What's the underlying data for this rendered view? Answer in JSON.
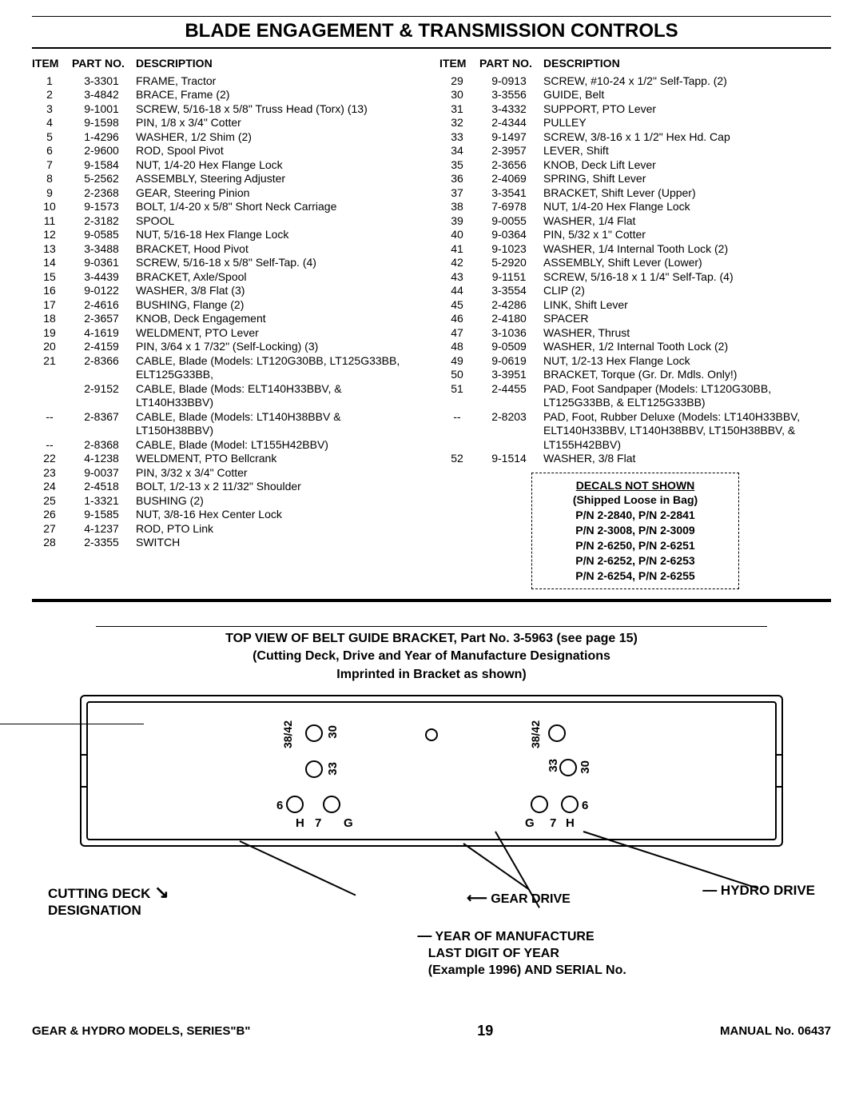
{
  "page": {
    "title": "BLADE ENGAGEMENT & TRANSMISSION CONTROLS",
    "headers": {
      "item": "ITEM",
      "part": "PART NO.",
      "desc": "DESCRIPTION"
    },
    "footer_left": "GEAR & HYDRO MODELS, SERIES\"B\"",
    "footer_page": "19",
    "footer_right": "MANUAL No. 06437"
  },
  "left_rows": [
    {
      "item": "1",
      "part": "3-3301",
      "desc": "FRAME, Tractor"
    },
    {
      "item": "2",
      "part": "3-4842",
      "desc": "BRACE, Frame (2)"
    },
    {
      "item": "3",
      "part": "9-1001",
      "desc": "SCREW, 5/16-18 x 5/8\" Truss Head (Torx) (13)"
    },
    {
      "item": "4",
      "part": "9-1598",
      "desc": "PIN, 1/8 x 3/4\" Cotter"
    },
    {
      "item": "5",
      "part": "1-4296",
      "desc": "WASHER, 1/2 Shim (2)"
    },
    {
      "item": "6",
      "part": "2-9600",
      "desc": "ROD, Spool Pivot"
    },
    {
      "item": "7",
      "part": "9-1584",
      "desc": "NUT, 1/4-20 Hex Flange Lock"
    },
    {
      "item": "8",
      "part": "5-2562",
      "desc": "ASSEMBLY, Steering Adjuster"
    },
    {
      "item": "9",
      "part": "2-2368",
      "desc": "GEAR, Steering Pinion"
    },
    {
      "item": "10",
      "part": "9-1573",
      "desc": "BOLT, 1/4-20 x 5/8\" Short Neck Carriage"
    },
    {
      "item": "11",
      "part": "2-3182",
      "desc": "SPOOL"
    },
    {
      "item": "12",
      "part": "9-0585",
      "desc": "NUT, 5/16-18 Hex Flange Lock"
    },
    {
      "item": "13",
      "part": "3-3488",
      "desc": "BRACKET, Hood Pivot"
    },
    {
      "item": "14",
      "part": "9-0361",
      "desc": "SCREW, 5/16-18 x 5/8\" Self-Tap. (4)"
    },
    {
      "item": "15",
      "part": "3-4439",
      "desc": "BRACKET, Axle/Spool"
    },
    {
      "item": "16",
      "part": "9-0122",
      "desc": "WASHER, 3/8 Flat (3)"
    },
    {
      "item": "17",
      "part": "2-4616",
      "desc": "BUSHING, Flange (2)"
    },
    {
      "item": "18",
      "part": "2-3657",
      "desc": "KNOB, Deck Engagement"
    },
    {
      "item": "19",
      "part": "4-1619",
      "desc": "WELDMENT, PTO Lever"
    },
    {
      "item": "20",
      "part": "2-4159",
      "desc": "PIN, 3/64 x 1 7/32\" (Self-Locking) (3)"
    },
    {
      "item": "21",
      "part": "2-8366",
      "desc": "CABLE, Blade (Models: LT120G30BB, LT125G33BB, ELT125G33BB,"
    },
    {
      "item": "",
      "part": "2-9152",
      "desc": "CABLE, Blade (Mods: ELT140H33BBV, & LT140H33BBV)"
    },
    {
      "item": "--",
      "part": "2-8367",
      "desc": "CABLE, Blade (Models: LT140H38BBV & LT150H38BBV)"
    },
    {
      "item": "--",
      "part": "2-8368",
      "desc": "CABLE, Blade (Model: LT155H42BBV)"
    },
    {
      "item": "22",
      "part": "4-1238",
      "desc": "WELDMENT, PTO Bellcrank"
    },
    {
      "item": "23",
      "part": "9-0037",
      "desc": "PIN, 3/32 x 3/4\" Cotter"
    },
    {
      "item": "24",
      "part": "2-4518",
      "desc": "BOLT, 1/2-13 x 2 11/32\" Shoulder"
    },
    {
      "item": "25",
      "part": "1-3321",
      "desc": "BUSHING (2)"
    },
    {
      "item": "26",
      "part": "9-1585",
      "desc": "NUT, 3/8-16 Hex Center Lock"
    },
    {
      "item": "27",
      "part": "4-1237",
      "desc": "ROD, PTO Link"
    },
    {
      "item": "28",
      "part": "2-3355",
      "desc": "SWITCH"
    }
  ],
  "right_rows": [
    {
      "item": "29",
      "part": "9-0913",
      "desc": "SCREW, #10-24 x 1/2\" Self-Tapp. (2)"
    },
    {
      "item": "30",
      "part": "3-3556",
      "desc": "GUIDE, Belt"
    },
    {
      "item": "31",
      "part": "3-4332",
      "desc": "SUPPORT, PTO Lever"
    },
    {
      "item": "32",
      "part": "2-4344",
      "desc": "PULLEY"
    },
    {
      "item": "33",
      "part": "9-1497",
      "desc": "SCREW, 3/8-16 x 1 1/2\" Hex Hd. Cap"
    },
    {
      "item": "34",
      "part": "2-3957",
      "desc": "LEVER, Shift"
    },
    {
      "item": "35",
      "part": "2-3656",
      "desc": "KNOB, Deck Lift Lever"
    },
    {
      "item": "36",
      "part": "2-4069",
      "desc": "SPRING, Shift Lever"
    },
    {
      "item": "37",
      "part": "3-3541",
      "desc": "BRACKET, Shift Lever (Upper)"
    },
    {
      "item": "38",
      "part": "7-6978",
      "desc": "NUT, 1/4-20 Hex Flange Lock"
    },
    {
      "item": "39",
      "part": "9-0055",
      "desc": "WASHER, 1/4 Flat"
    },
    {
      "item": "40",
      "part": "9-0364",
      "desc": "PIN, 5/32 x 1\" Cotter"
    },
    {
      "item": "41",
      "part": "9-1023",
      "desc": "WASHER, 1/4 Internal Tooth Lock (2)"
    },
    {
      "item": "42",
      "part": "5-2920",
      "desc": "ASSEMBLY, Shift Lever (Lower)"
    },
    {
      "item": "43",
      "part": "9-1151",
      "desc": "SCREW, 5/16-18 x 1 1/4\" Self-Tap. (4)"
    },
    {
      "item": "44",
      "part": "3-3554",
      "desc": "CLIP (2)"
    },
    {
      "item": "45",
      "part": "2-4286",
      "desc": "LINK, Shift Lever"
    },
    {
      "item": "46",
      "part": "2-4180",
      "desc": "SPACER"
    },
    {
      "item": "47",
      "part": "3-1036",
      "desc": "WASHER, Thrust"
    },
    {
      "item": "48",
      "part": "9-0509",
      "desc": "WASHER, 1/2 Internal Tooth Lock (2)"
    },
    {
      "item": "49",
      "part": "9-0619",
      "desc": "NUT, 1/2-13 Hex Flange Lock"
    },
    {
      "item": "50",
      "part": "3-3951",
      "desc": "BRACKET, Torque (Gr. Dr. Mdls. Only!)"
    },
    {
      "item": "51",
      "part": "2-4455",
      "desc": "PAD, Foot Sandpaper (Models: LT120G30BB, LT125G33BB, & ELT125G33BB)"
    },
    {
      "item": "--",
      "part": "2-8203",
      "desc": "PAD, Foot, Rubber Deluxe (Models: LT140H33BBV, ELT140H33BBV, LT140H38BBV, LT150H38BBV, & LT155H42BBV)"
    },
    {
      "item": "52",
      "part": "9-1514",
      "desc": "WASHER, 3/8 Flat"
    }
  ],
  "decals": {
    "title": "DECALS NOT SHOWN",
    "ship": "(Shipped Loose in Bag)",
    "lines": [
      "P/N 2-2840, P/N 2-2841",
      "P/N 2-3008, P/N 2-3009",
      "P/N 2-6250, P/N 2-6251",
      "P/N 2-6252, P/N 2-6253",
      "P/N 2-6254, P/N 2-6255"
    ]
  },
  "diagram": {
    "caption_l1": "TOP VIEW OF BELT GUIDE BRACKET, Part No. 3-5963 (see page 15)",
    "caption_l2": "(Cutting Deck, Drive and Year of Manufacture Designations",
    "caption_l3": "Imprinted in Bracket as shown)",
    "callout_left_l1": "CUTTING DECK",
    "callout_left_l2": "DESIGNATION",
    "callout_right": "HYDRO DRIVE",
    "callout_gear": "GEAR DRIVE",
    "callout_year_l1": "YEAR OF MANUFACTURE",
    "callout_year_l2": "LAST DIGIT OF YEAR",
    "callout_year_l3": "(Example 1996) AND SERIAL No.",
    "labels": {
      "v1": "38/42",
      "h30": "30",
      "h33": "33",
      "h6": "6",
      "hH": "H",
      "h7": "7",
      "hG": "G"
    }
  }
}
